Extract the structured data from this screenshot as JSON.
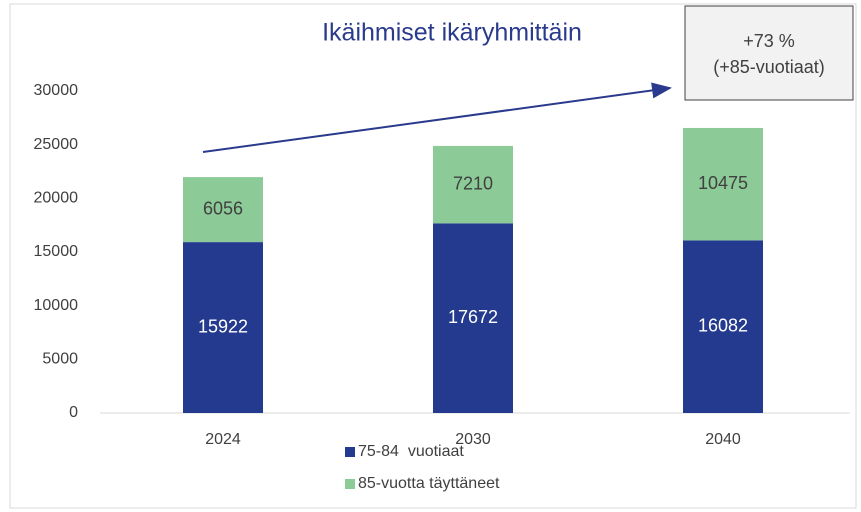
{
  "chart_data": {
    "type": "stacked_bar",
    "title": "Ikäihmiset ikäryhmittäin",
    "categories": [
      "2024",
      "2030",
      "2040"
    ],
    "series": [
      {
        "name": "75-84  vuotiaat",
        "color": "#233a8f",
        "values": [
          15922,
          17672,
          16082
        ]
      },
      {
        "name": "85-vuotta täyttäneet",
        "color": "#8ccb97",
        "values": [
          6056,
          7210,
          10475
        ]
      }
    ],
    "ylim": [
      0,
      30000
    ],
    "yticks": [
      0,
      5000,
      10000,
      15000,
      20000,
      25000,
      30000
    ],
    "grid": false,
    "legend": "bottom",
    "annotation": [
      "+73 %",
      "(+85-vuotiaat)"
    ]
  }
}
